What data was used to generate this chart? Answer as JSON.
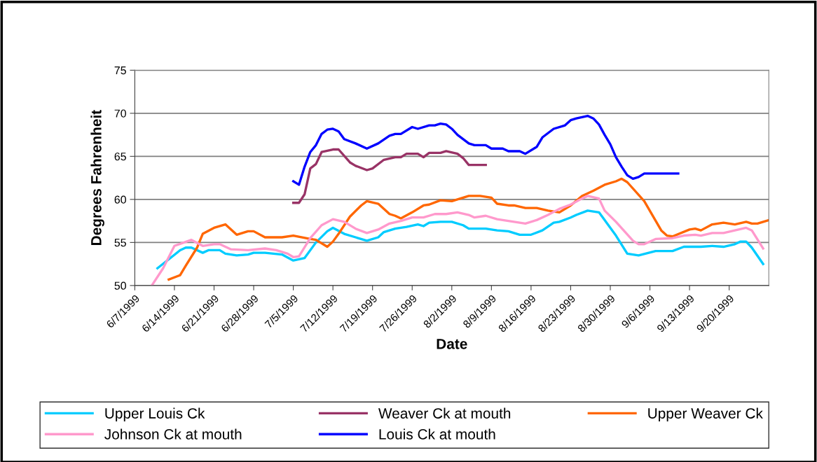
{
  "chart_data": {
    "type": "line",
    "xlabel": "Date",
    "ylabel": "Degrees Fahrenheit",
    "xlim": [
      "1999-06-07",
      "1999-09-27"
    ],
    "xticks": [
      {
        "value": "1999-06-07",
        "label": "6/7/1999"
      },
      {
        "value": "1999-06-14",
        "label": "6/14/1999"
      },
      {
        "value": "1999-06-21",
        "label": "6/21/1999"
      },
      {
        "value": "1999-06-28",
        "label": "6/28/1999"
      },
      {
        "value": "1999-07-05",
        "label": "7/5/1999"
      },
      {
        "value": "1999-07-12",
        "label": "7/12/1999"
      },
      {
        "value": "1999-07-19",
        "label": "7/19/1999"
      },
      {
        "value": "1999-07-26",
        "label": "7/26/1999"
      },
      {
        "value": "1999-08-02",
        "label": "8/2/1999"
      },
      {
        "value": "1999-08-09",
        "label": "8/9/1999"
      },
      {
        "value": "1999-08-16",
        "label": "8/16/1999"
      },
      {
        "value": "1999-08-23",
        "label": "8/23/1999"
      },
      {
        "value": "1999-08-30",
        "label": "8/30/1999"
      },
      {
        "value": "1999-09-06",
        "label": "9/6/1999"
      },
      {
        "value": "1999-09-13",
        "label": "9/13/1999"
      },
      {
        "value": "1999-09-20",
        "label": "9/20/1999"
      }
    ],
    "ylim": [
      50,
      75
    ],
    "yticks": [
      50,
      55,
      60,
      65,
      70,
      75
    ],
    "grid": "y",
    "legend": "bottom",
    "marker": "none",
    "line_style": "solid",
    "series": [
      {
        "name": "Upper Louis Ck",
        "color": "#00ccff",
        "x": [
          "1999-06-11",
          "1999-06-15",
          "1999-06-16",
          "1999-06-17",
          "1999-06-19",
          "1999-06-20",
          "1999-06-22",
          "1999-06-23",
          "1999-06-25",
          "1999-06-27",
          "1999-06-28",
          "1999-06-30",
          "1999-07-03",
          "1999-07-05",
          "1999-07-07",
          "1999-07-09",
          "1999-07-11",
          "1999-07-12",
          "1999-07-14",
          "1999-07-16",
          "1999-07-18",
          "1999-07-20",
          "1999-07-21",
          "1999-07-23",
          "1999-07-25",
          "1999-07-27",
          "1999-07-28",
          "1999-07-29",
          "1999-07-31",
          "1999-08-02",
          "1999-08-04",
          "1999-08-05",
          "1999-08-08",
          "1999-08-10",
          "1999-08-12",
          "1999-08-14",
          "1999-08-16",
          "1999-08-18",
          "1999-08-20",
          "1999-08-21",
          "1999-08-23",
          "1999-08-24",
          "1999-08-26",
          "1999-08-28",
          "1999-08-31",
          "1999-09-02",
          "1999-09-04",
          "1999-09-07",
          "1999-09-10",
          "1999-09-12",
          "1999-09-15",
          "1999-09-17",
          "1999-09-19",
          "1999-09-21",
          "1999-09-22",
          "1999-09-23",
          "1999-09-24",
          "1999-09-26"
        ],
        "values": [
          52.0,
          54.1,
          54.4,
          54.4,
          53.8,
          54.1,
          54.1,
          53.7,
          53.5,
          53.6,
          53.8,
          53.8,
          53.6,
          52.9,
          53.2,
          55.0,
          56.3,
          56.7,
          56.0,
          55.6,
          55.2,
          55.6,
          56.2,
          56.6,
          56.8,
          57.1,
          56.9,
          57.3,
          57.4,
          57.4,
          57.0,
          56.6,
          56.6,
          56.4,
          56.3,
          55.9,
          55.9,
          56.4,
          57.3,
          57.4,
          57.9,
          58.2,
          58.7,
          58.5,
          55.8,
          53.7,
          53.5,
          54.0,
          54.0,
          54.5,
          54.5,
          54.6,
          54.5,
          54.8,
          55.1,
          55.1,
          54.4,
          52.5
        ]
      },
      {
        "name": "Weaver Ck at mouth",
        "color": "#993366",
        "x": [
          "1999-07-05",
          "1999-07-06",
          "1999-07-07",
          "1999-07-08",
          "1999-07-09",
          "1999-07-10",
          "1999-07-12",
          "1999-07-13",
          "1999-07-15",
          "1999-07-16",
          "1999-07-18",
          "1999-07-19",
          "1999-07-21",
          "1999-07-23",
          "1999-07-24",
          "1999-07-25",
          "1999-07-27",
          "1999-07-28",
          "1999-07-29",
          "1999-07-31",
          "1999-08-01",
          "1999-08-03",
          "1999-08-04",
          "1999-08-05",
          "1999-08-08"
        ],
        "values": [
          59.6,
          59.6,
          60.6,
          63.6,
          64.1,
          65.5,
          65.8,
          65.8,
          64.3,
          63.9,
          63.4,
          63.6,
          64.6,
          64.9,
          64.9,
          65.3,
          65.3,
          64.9,
          65.4,
          65.4,
          65.6,
          65.3,
          64.8,
          64.0,
          64.0
        ]
      },
      {
        "name": "Upper Weaver Ck",
        "color": "#ff6600",
        "x": [
          "1999-06-13",
          "1999-06-15",
          "1999-06-16",
          "1999-06-18",
          "1999-06-19",
          "1999-06-21",
          "1999-06-23",
          "1999-06-25",
          "1999-06-27",
          "1999-06-28",
          "1999-06-30",
          "1999-07-03",
          "1999-07-05",
          "1999-07-08",
          "1999-07-09",
          "1999-07-11",
          "1999-07-12",
          "1999-07-13",
          "1999-07-15",
          "1999-07-17",
          "1999-07-18",
          "1999-07-20",
          "1999-07-22",
          "1999-07-23",
          "1999-07-24",
          "1999-07-26",
          "1999-07-28",
          "1999-07-29",
          "1999-07-31",
          "1999-08-02",
          "1999-08-04",
          "1999-08-05",
          "1999-08-07",
          "1999-08-09",
          "1999-08-10",
          "1999-08-12",
          "1999-08-13",
          "1999-08-15",
          "1999-08-17",
          "1999-08-19",
          "1999-08-21",
          "1999-08-23",
          "1999-08-25",
          "1999-08-27",
          "1999-08-29",
          "1999-08-31",
          "1999-09-01",
          "1999-09-02",
          "1999-09-05",
          "1999-09-08",
          "1999-09-09",
          "1999-09-10",
          "1999-09-13",
          "1999-09-14",
          "1999-09-15",
          "1999-09-17",
          "1999-09-19",
          "1999-09-21",
          "1999-09-23",
          "1999-09-24",
          "1999-09-25",
          "1999-09-27"
        ],
        "values": [
          50.7,
          51.2,
          52.3,
          54.4,
          56.0,
          56.7,
          57.1,
          55.9,
          56.3,
          56.3,
          55.6,
          55.6,
          55.8,
          55.4,
          55.3,
          54.5,
          55.1,
          56.0,
          58.0,
          59.3,
          59.8,
          59.5,
          58.3,
          58.1,
          57.8,
          58.5,
          59.3,
          59.4,
          59.9,
          59.8,
          60.2,
          60.4,
          60.4,
          60.2,
          59.5,
          59.3,
          59.3,
          59.0,
          59.0,
          58.7,
          58.5,
          59.3,
          60.4,
          61.0,
          61.7,
          62.1,
          62.4,
          62.0,
          59.8,
          56.4,
          55.8,
          55.7,
          56.5,
          56.6,
          56.4,
          57.1,
          57.3,
          57.1,
          57.4,
          57.2,
          57.2,
          57.6
        ]
      },
      {
        "name": "Johnson Ck at mouth",
        "color": "#ff99cc",
        "x": [
          "1999-06-10",
          "1999-06-12",
          "1999-06-14",
          "1999-06-17",
          "1999-06-19",
          "1999-06-21",
          "1999-06-22",
          "1999-06-24",
          "1999-06-27",
          "1999-06-30",
          "1999-07-02",
          "1999-07-04",
          "1999-07-05",
          "1999-07-06",
          "1999-07-08",
          "1999-07-10",
          "1999-07-12",
          "1999-07-14",
          "1999-07-16",
          "1999-07-18",
          "1999-07-20",
          "1999-07-22",
          "1999-07-24",
          "1999-07-26",
          "1999-07-28",
          "1999-07-30",
          "1999-08-01",
          "1999-08-03",
          "1999-08-05",
          "1999-08-06",
          "1999-08-08",
          "1999-08-10",
          "1999-08-13",
          "1999-08-15",
          "1999-08-17",
          "1999-08-19",
          "1999-08-21",
          "1999-08-23",
          "1999-08-25",
          "1999-08-26",
          "1999-08-28",
          "1999-08-29",
          "1999-08-31",
          "1999-09-03",
          "1999-09-04",
          "1999-09-05",
          "1999-09-07",
          "1999-09-10",
          "1999-09-12",
          "1999-09-14",
          "1999-09-15",
          "1999-09-17",
          "1999-09-19",
          "1999-09-21",
          "1999-09-23",
          "1999-09-24",
          "1999-09-26"
        ],
        "values": [
          50.0,
          52.0,
          54.6,
          55.3,
          54.6,
          54.8,
          54.8,
          54.2,
          54.1,
          54.3,
          54.1,
          53.7,
          53.3,
          53.4,
          55.5,
          57.0,
          57.7,
          57.4,
          56.6,
          56.1,
          56.5,
          57.2,
          57.5,
          57.9,
          57.9,
          58.3,
          58.3,
          58.5,
          58.2,
          57.9,
          58.1,
          57.7,
          57.4,
          57.2,
          57.6,
          58.2,
          58.9,
          59.4,
          60.1,
          60.4,
          60.1,
          58.7,
          57.4,
          55.2,
          54.8,
          54.8,
          55.4,
          55.5,
          55.8,
          55.9,
          55.8,
          56.1,
          56.1,
          56.4,
          56.7,
          56.4,
          54.3
        ]
      },
      {
        "name": "Louis Ck at mouth",
        "color": "#0000ff",
        "x": [
          "1999-07-05",
          "1999-07-06",
          "1999-07-07",
          "1999-07-08",
          "1999-07-09",
          "1999-07-10",
          "1999-07-11",
          "1999-07-12",
          "1999-07-13",
          "1999-07-14",
          "1999-07-16",
          "1999-07-18",
          "1999-07-20",
          "1999-07-22",
          "1999-07-23",
          "1999-07-24",
          "1999-07-26",
          "1999-07-27",
          "1999-07-29",
          "1999-07-30",
          "1999-07-31",
          "1999-08-01",
          "1999-08-02",
          "1999-08-03",
          "1999-08-05",
          "1999-08-06",
          "1999-08-08",
          "1999-08-09",
          "1999-08-11",
          "1999-08-12",
          "1999-08-14",
          "1999-08-15",
          "1999-08-17",
          "1999-08-18",
          "1999-08-20",
          "1999-08-22",
          "1999-08-23",
          "1999-08-24",
          "1999-08-26",
          "1999-08-27",
          "1999-08-28",
          "1999-08-29",
          "1999-08-30",
          "1999-08-31",
          "1999-09-01",
          "1999-09-02",
          "1999-09-03",
          "1999-09-04",
          "1999-09-05",
          "1999-09-11"
        ],
        "values": [
          62.1,
          61.7,
          63.8,
          65.5,
          66.3,
          67.6,
          68.1,
          68.2,
          67.9,
          67.0,
          66.5,
          65.9,
          66.5,
          67.4,
          67.6,
          67.6,
          68.4,
          68.2,
          68.6,
          68.6,
          68.8,
          68.7,
          68.2,
          67.5,
          66.5,
          66.3,
          66.3,
          65.9,
          65.9,
          65.6,
          65.6,
          65.3,
          66.1,
          67.2,
          68.2,
          68.6,
          69.2,
          69.4,
          69.7,
          69.4,
          68.7,
          67.5,
          66.4,
          64.9,
          63.8,
          62.8,
          62.4,
          62.6,
          63.0,
          63.0
        ]
      }
    ]
  }
}
